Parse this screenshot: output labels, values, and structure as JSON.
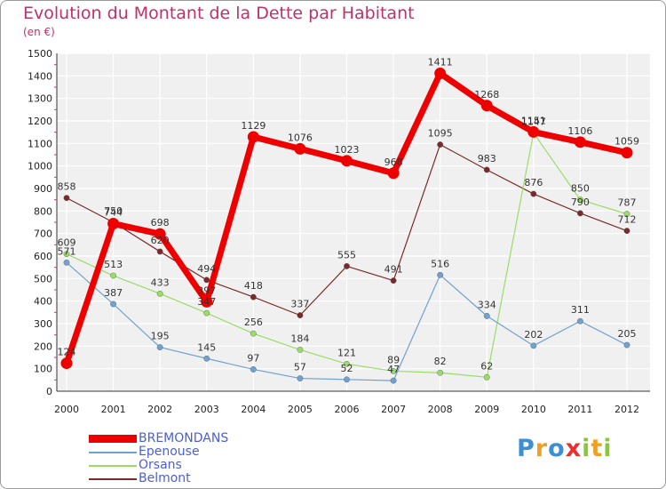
{
  "header": {
    "title": "Evolution du Montant de la Dette par Habitant",
    "subtitle": "(en €)"
  },
  "brand": {
    "letters": [
      "P",
      "r",
      "o",
      "x",
      "i",
      "t",
      "i"
    ],
    "colors": [
      "#3a8fd6",
      "#f0a020",
      "#3a8fd6",
      "#e83030",
      "#8ac83a",
      "#f0a020",
      "#8ac83a"
    ]
  },
  "chart_data": {
    "type": "line",
    "title": "Evolution du Montant de la Dette par Habitant",
    "subtitle": "(en €)",
    "xlabel": "",
    "ylabel": "",
    "categories": [
      "2000",
      "2001",
      "2002",
      "2003",
      "2004",
      "2005",
      "2006",
      "2007",
      "2008",
      "2009",
      "2010",
      "2011",
      "2012"
    ],
    "ylim": [
      0,
      1500
    ],
    "yticks": [
      "0",
      "100",
      "200",
      "300",
      "400",
      "500",
      "600",
      "700",
      "800",
      "900",
      "1000",
      "1100",
      "1200",
      "1300",
      "1400",
      "1500"
    ],
    "grid": true,
    "legend_position": "bottom-left",
    "series": [
      {
        "name": "BREMONDANS",
        "color": "#ee0000",
        "values": [
          124,
          744,
          698,
          397,
          1129,
          1076,
          1023,
          968,
          1411,
          1268,
          1151,
          1106,
          1059
        ],
        "labels": [
          "124",
          "744",
          "698",
          "397",
          "1129",
          "1076",
          "1023",
          "968",
          "1411",
          "1268",
          "1151",
          "1106",
          "1059"
        ]
      },
      {
        "name": "Epenouse",
        "color": "#6fa2d0",
        "values": [
          571,
          387,
          195,
          145,
          97,
          57,
          52,
          47,
          516,
          334,
          202,
          311,
          205
        ],
        "labels": [
          "571",
          "387",
          "195",
          "145",
          "97",
          "57",
          "52",
          "47",
          "516",
          "334",
          "202",
          "311",
          "205"
        ]
      },
      {
        "name": "Orsans",
        "color": "#99dd66",
        "values": [
          609,
          513,
          433,
          347,
          256,
          184,
          121,
          89,
          82,
          62,
          1147,
          850,
          787
        ],
        "labels": [
          "609",
          "513",
          "433",
          "347",
          "256",
          "184",
          "121",
          "89",
          "82",
          "62",
          "1147",
          "850",
          "787"
        ]
      },
      {
        "name": "Belmont",
        "color": "#7a2a2a",
        "values": [
          858,
          750,
          620,
          494,
          418,
          337,
          555,
          491,
          1095,
          983,
          876,
          790,
          712
        ],
        "labels": [
          "858",
          "750",
          "620",
          "494",
          "418",
          "337",
          "555",
          "491",
          "1095",
          "983",
          "876",
          "790",
          "712"
        ]
      }
    ]
  }
}
